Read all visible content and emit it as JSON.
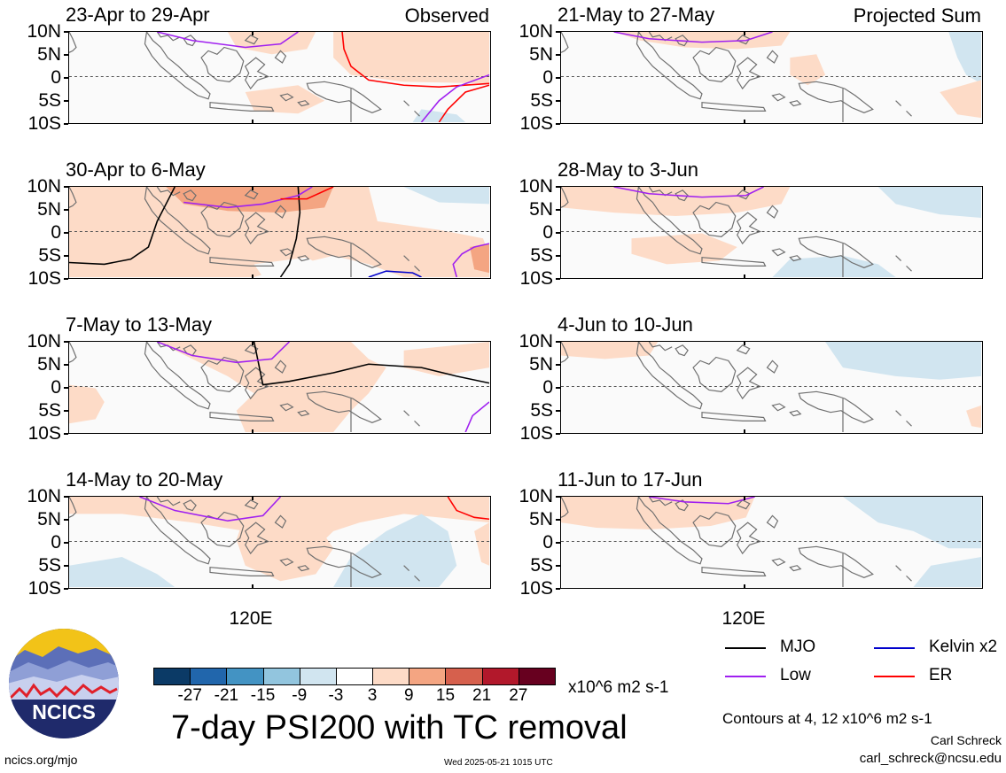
{
  "panels": [
    {
      "title": "23-Apr to 29-Apr",
      "tag": "Observed"
    },
    {
      "title": "30-Apr to 6-May",
      "tag": ""
    },
    {
      "title": "7-May to 13-May",
      "tag": ""
    },
    {
      "title": "14-May to 20-May",
      "tag": ""
    },
    {
      "title": "21-May to 27-May",
      "tag": "Projected Sum"
    },
    {
      "title": "28-May to 3-Jun",
      "tag": ""
    },
    {
      "title": "4-Jun to 10-Jun",
      "tag": ""
    },
    {
      "title": "11-Jun to 17-Jun",
      "tag": ""
    }
  ],
  "lat_labels": [
    "10N",
    "5N",
    "0",
    "5S",
    "10S"
  ],
  "lon_label": "120E",
  "colorbar": {
    "colors": [
      "#0b3a66",
      "#2166ac",
      "#4393c3",
      "#92c5de",
      "#d1e5f0",
      "#ffffff",
      "#fddbc7",
      "#f4a582",
      "#d6604d",
      "#b2182b",
      "#67001f"
    ],
    "labels": [
      "-27",
      "-21",
      "-15",
      "-9",
      "-3",
      "3",
      "9",
      "15",
      "21",
      "27"
    ],
    "units": "x10^6 m2 s-1"
  },
  "legend": [
    {
      "label": "MJO",
      "color": "#000000"
    },
    {
      "label": "Kelvin x2",
      "color": "#0000cc"
    },
    {
      "label": "Low",
      "color": "#a020f0"
    },
    {
      "label": "ER",
      "color": "#ff0000"
    }
  ],
  "title": "7-day PSI200 with TC removal",
  "contours_note": "Contours at 4, 12 x10^6 m2 s-1",
  "logo_text": "NCICS",
  "author": "Carl Schreck",
  "email": "carl_schreck@ncsu.edu",
  "url": "ncics.org/mjo",
  "timestamp": "Wed 2025-05-21 1015 UTC"
}
